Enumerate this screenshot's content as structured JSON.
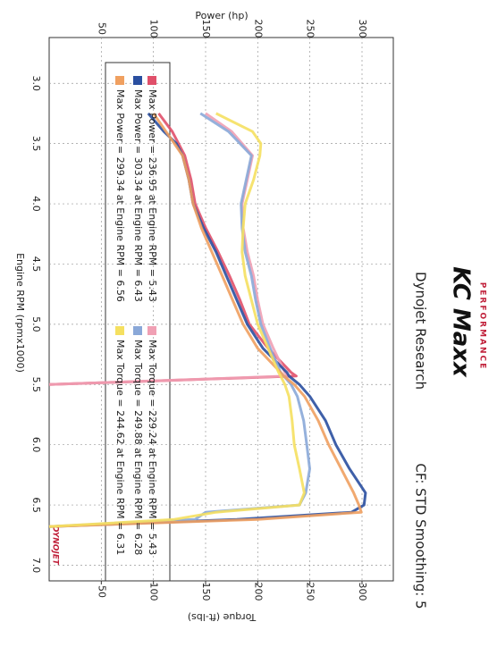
{
  "chart_data": {
    "type": "line",
    "orientation": "rotated",
    "brand": "KC Maxx",
    "brand_tagline": "PERFORMANCE",
    "title": "Dynojet Research",
    "subtitle": "CF: STD Smoothing: 5",
    "watermark": "DYNOJET",
    "x_label": "Engine RPM (rpmx1000)",
    "y_label": "Power (hp)",
    "y2_label": "Torque (ft-lbs)",
    "xlim": [
      2.62,
      7.13
    ],
    "xticks": [
      {
        "value": 3,
        "label": "3.0"
      },
      3.5,
      {
        "value": 4,
        "label": "4.0"
      },
      4.5,
      {
        "value": 5,
        "label": "5.0"
      },
      5.5,
      {
        "value": 6,
        "label": "6.0"
      },
      6.5,
      {
        "value": 7,
        "label": "7.0"
      }
    ],
    "ylim": [
      0,
      330
    ],
    "yticks": [
      50,
      100,
      150,
      200,
      250,
      300
    ],
    "y2lim": [
      0,
      330
    ],
    "y2ticks": [
      50,
      100,
      150,
      200,
      250,
      300
    ],
    "grid": true,
    "x": [
      3.25,
      3.4,
      3.5,
      3.6,
      3.8,
      4.0,
      4.2,
      4.4,
      4.6,
      4.8,
      5.0,
      5.2,
      5.4,
      5.43,
      5.5,
      5.6,
      5.8,
      6.0,
      6.2,
      6.4,
      6.5,
      6.56,
      6.62,
      6.68
    ],
    "series": [
      {
        "name": "Max Power = 236.95 at Engine RPM = 5.43",
        "color": "#e0506a",
        "values": [
          105,
          118,
          124,
          130,
          136,
          140,
          150,
          162,
          173,
          183,
          192,
          210,
          232,
          236.95,
          0,
          null,
          null,
          null,
          null,
          null,
          null,
          null,
          null,
          null
        ]
      },
      {
        "name": "Max Torque = 229.24 at Engine RPM = 5.43",
        "color": "#f0a0b4",
        "axis": "y2",
        "values": [
          150,
          175,
          185,
          195,
          190,
          185,
          186,
          190,
          196,
          200,
          205,
          215,
          226,
          229.24,
          0,
          null,
          null,
          null,
          null,
          null,
          null,
          null,
          null,
          null
        ]
      },
      {
        "name": "Max Power = 303.34 at Engine RPM = 6.43",
        "color": "#2a4fa0",
        "values": [
          95,
          110,
          122,
          128,
          134,
          138,
          148,
          160,
          170,
          180,
          190,
          205,
          228,
          230,
          240,
          250,
          265,
          275,
          288,
          303.34,
          302,
          290,
          180,
          0
        ]
      },
      {
        "name": "Max Torque = 249.88 at Engine RPM = 6.28",
        "color": "#8aa8d8",
        "axis": "y2",
        "values": [
          145,
          172,
          183,
          194,
          189,
          184,
          185,
          188,
          194,
          198,
          203,
          212,
          222,
          225,
          232,
          238,
          244,
          247,
          249.88,
          246,
          240,
          150,
          140,
          0
        ]
      },
      {
        "name": "Max Power = 299.34 at Engine RPM = 6.56",
        "color": "#f0a060",
        "values": [
          100,
          112,
          120,
          128,
          134,
          138,
          146,
          156,
          166,
          176,
          186,
          200,
          222,
          225,
          235,
          245,
          258,
          268,
          280,
          292,
          297,
          299.34,
          200,
          0
        ]
      },
      {
        "name": "Max Torque = 244.62 at Engine RPM = 6.31",
        "color": "#f5e060",
        "axis": "y2",
        "values": [
          160,
          195,
          203,
          202,
          196,
          188,
          186,
          185,
          188,
          194,
          200,
          210,
          220,
          222,
          226,
          230,
          233,
          235,
          240,
          244.62,
          240,
          160,
          120,
          0
        ]
      }
    ]
  }
}
